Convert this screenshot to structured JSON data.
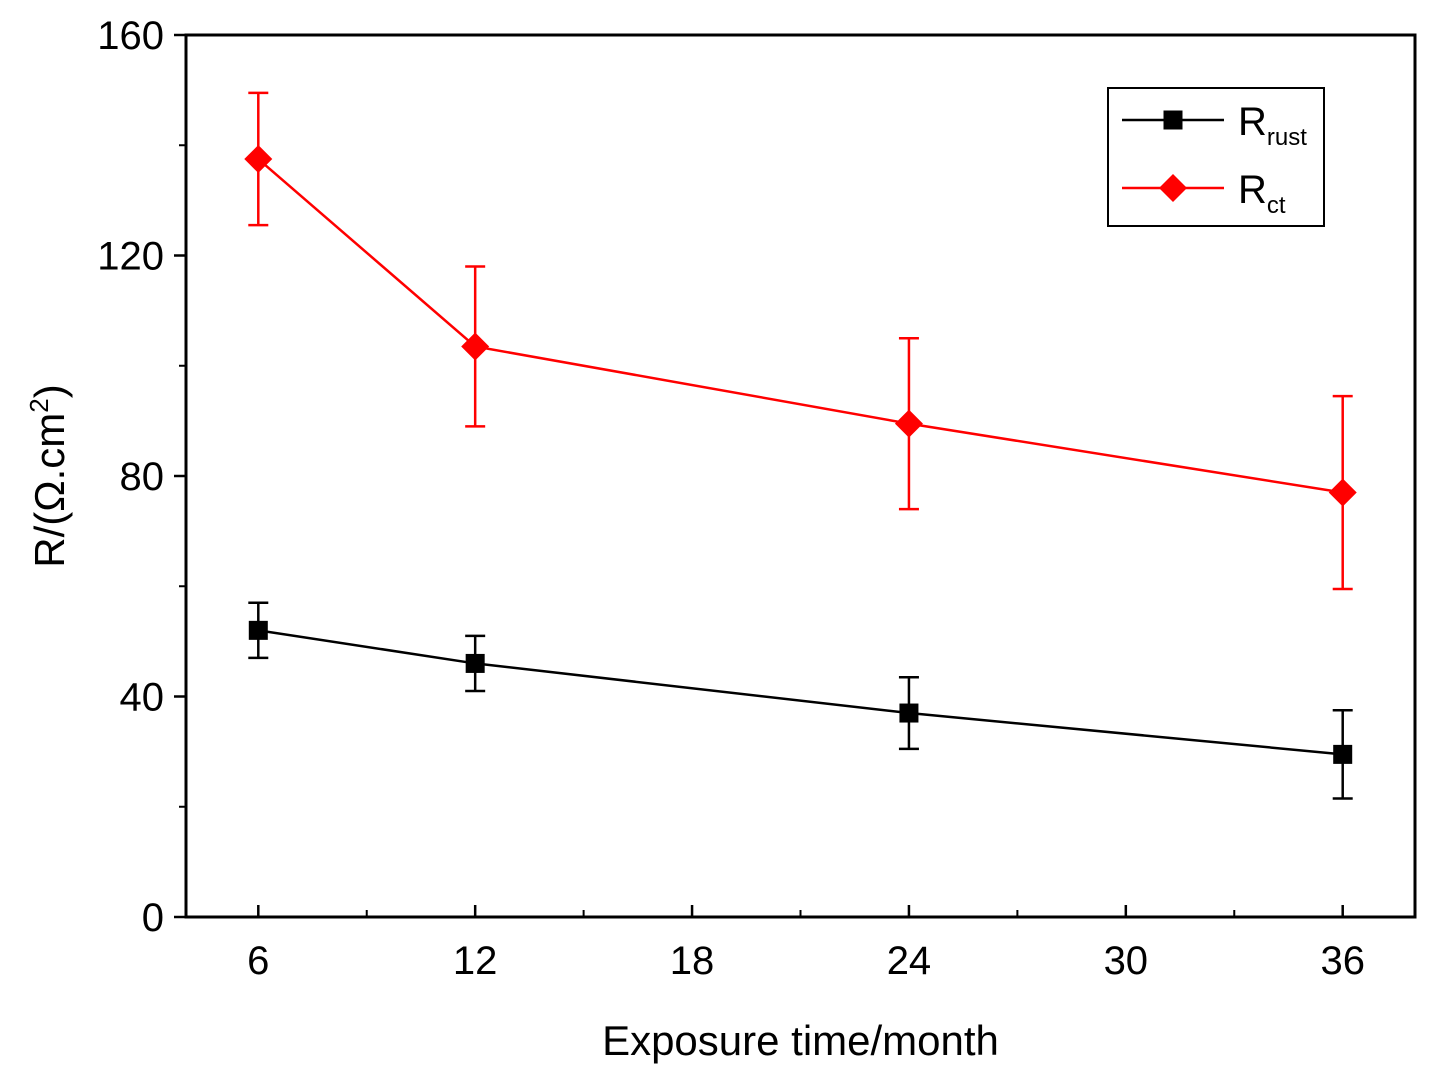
{
  "chart_data": {
    "type": "line",
    "title": "",
    "xlabel": "Exposure time/month",
    "ylabel": "R/(Ω.cm²)",
    "ylabel_parts": {
      "prefix": "R/(Ω.cm",
      "superscript": "2",
      "suffix": ")"
    },
    "xlim": [
      4,
      38
    ],
    "ylim": [
      0,
      160
    ],
    "x_ticks": [
      "6",
      "12",
      "18",
      "24",
      "30",
      "36"
    ],
    "x_tick_values": [
      6,
      12,
      18,
      24,
      30,
      36
    ],
    "x_minor_ticks": [
      9,
      15,
      21,
      27,
      33
    ],
    "y_ticks": [
      "0",
      "40",
      "80",
      "120",
      "160"
    ],
    "y_tick_values": [
      0,
      40,
      80,
      120,
      160
    ],
    "y_minor_ticks": [
      20,
      60,
      100,
      140
    ],
    "legend_position": "top-right",
    "series": [
      {
        "name": "Rrust",
        "label_main": "R",
        "label_sub": "rust",
        "color": "#000000",
        "marker": "square",
        "x": [
          6,
          12,
          24,
          36
        ],
        "values": [
          52,
          46,
          37,
          29.5
        ],
        "error": [
          5,
          5,
          6.5,
          8
        ]
      },
      {
        "name": "Rct",
        "label_main": "R",
        "label_sub": "ct",
        "color": "#ff0000",
        "marker": "diamond",
        "x": [
          6,
          12,
          24,
          36
        ],
        "values": [
          137.5,
          103.5,
          89.5,
          77
        ],
        "error": [
          12,
          14.5,
          15.5,
          17.5
        ]
      }
    ]
  }
}
